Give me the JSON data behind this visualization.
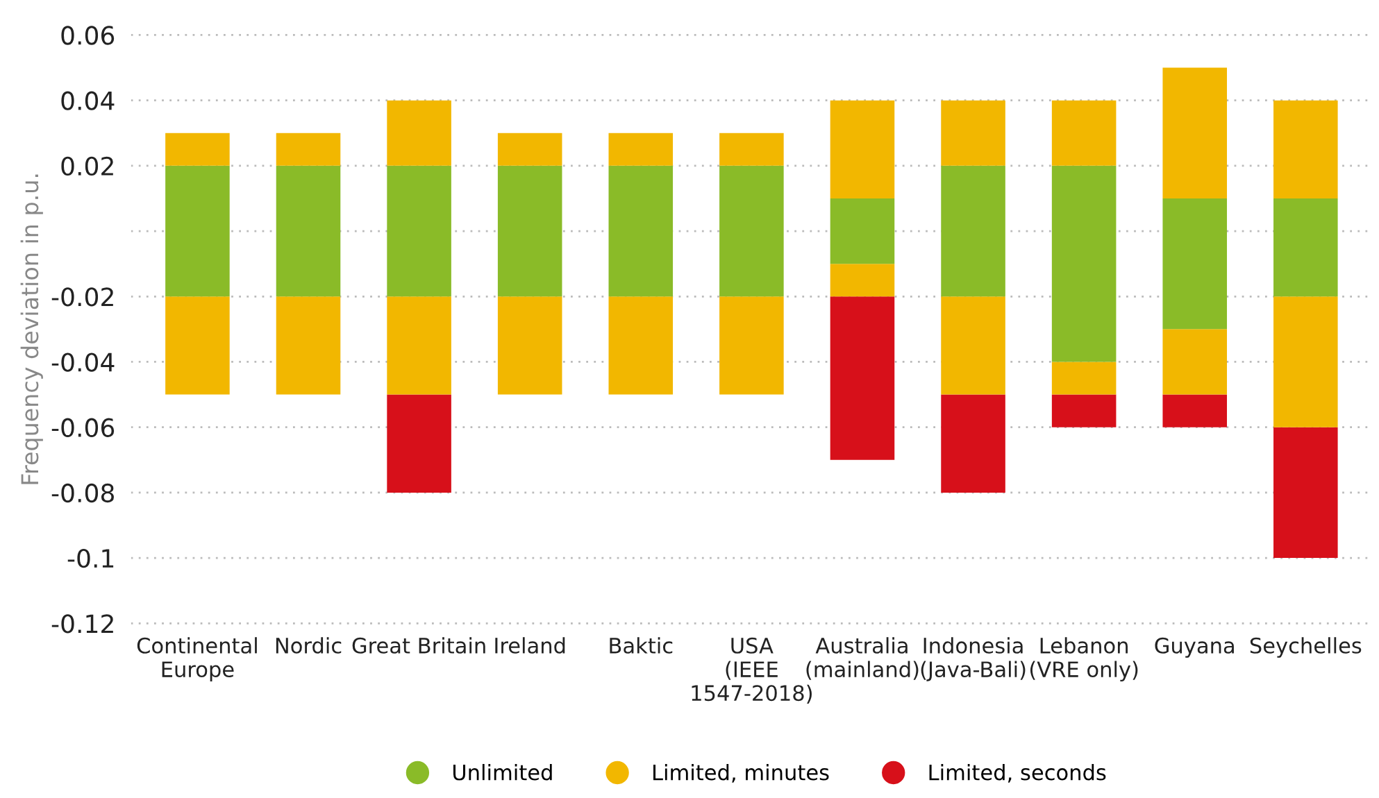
{
  "chart_data": {
    "type": "bar",
    "ylabel": "Frequency deviation in p.u.",
    "categories": [
      "Continental\nEurope",
      "Nordic",
      "Great Britain",
      "Ireland",
      "Baktic",
      "USA\n(IEEE\n1547-2018)",
      "Australia\n(mainland)",
      "Indonesia\n(Java-Bali)",
      "Lebanon\n(VRE only)",
      "Guyana",
      "Seychelles"
    ],
    "series": [
      {
        "name": "Limited, seconds",
        "color": "#d7101a",
        "base": [
          null,
          null,
          -0.08,
          null,
          null,
          null,
          -0.07,
          -0.08,
          -0.06,
          -0.06,
          -0.1
        ],
        "values": [
          null,
          null,
          0.03,
          null,
          null,
          null,
          0.05,
          0.03,
          0.01,
          0.01,
          0.04
        ]
      },
      {
        "color": "#f2b700",
        "base": [
          -0.05,
          -0.05,
          -0.05,
          -0.05,
          -0.05,
          -0.05,
          -0.02,
          -0.05,
          -0.05,
          -0.05,
          -0.06
        ],
        "values": [
          0.03,
          0.03,
          0.03,
          0.03,
          0.03,
          0.03,
          0.01,
          0.03,
          0.01,
          0.02,
          0.04
        ]
      },
      {
        "name": "Unlimited",
        "color": "#8abb28",
        "base": [
          -0.02,
          -0.02,
          -0.02,
          -0.02,
          -0.02,
          -0.02,
          -0.01,
          -0.02,
          -0.04,
          -0.03,
          -0.02
        ],
        "values": [
          0.04,
          0.04,
          0.04,
          0.04,
          0.04,
          0.04,
          0.02,
          0.04,
          0.06,
          0.04,
          0.03
        ]
      },
      {
        "name": "Limited, minutes",
        "color": "#f2b700",
        "base": [
          0.02,
          0.02,
          0.02,
          0.02,
          0.02,
          0.02,
          0.01,
          0.02,
          0.02,
          0.01,
          0.01
        ],
        "values": [
          0.01,
          0.01,
          0.02,
          0.01,
          0.01,
          0.01,
          0.03,
          0.02,
          0.02,
          0.04,
          0.03
        ]
      }
    ],
    "ylim": [
      -0.12,
      0.06
    ],
    "yticks": [
      0.06,
      0.04,
      0.02,
      {
        "value": 0,
        "label": null
      },
      {
        "value": -0.02,
        "label": "-0.02"
      },
      {
        "value": -0.04,
        "label": "-0.04"
      },
      {
        "value": -0.06,
        "label": "-0.06"
      },
      {
        "value": -0.08,
        "label": "-0.08"
      },
      {
        "value": -0.1,
        "label": "-0.1"
      },
      {
        "value": -0.12,
        "label": "-0.12"
      }
    ],
    "grid": "y",
    "legend": "bottom"
  }
}
